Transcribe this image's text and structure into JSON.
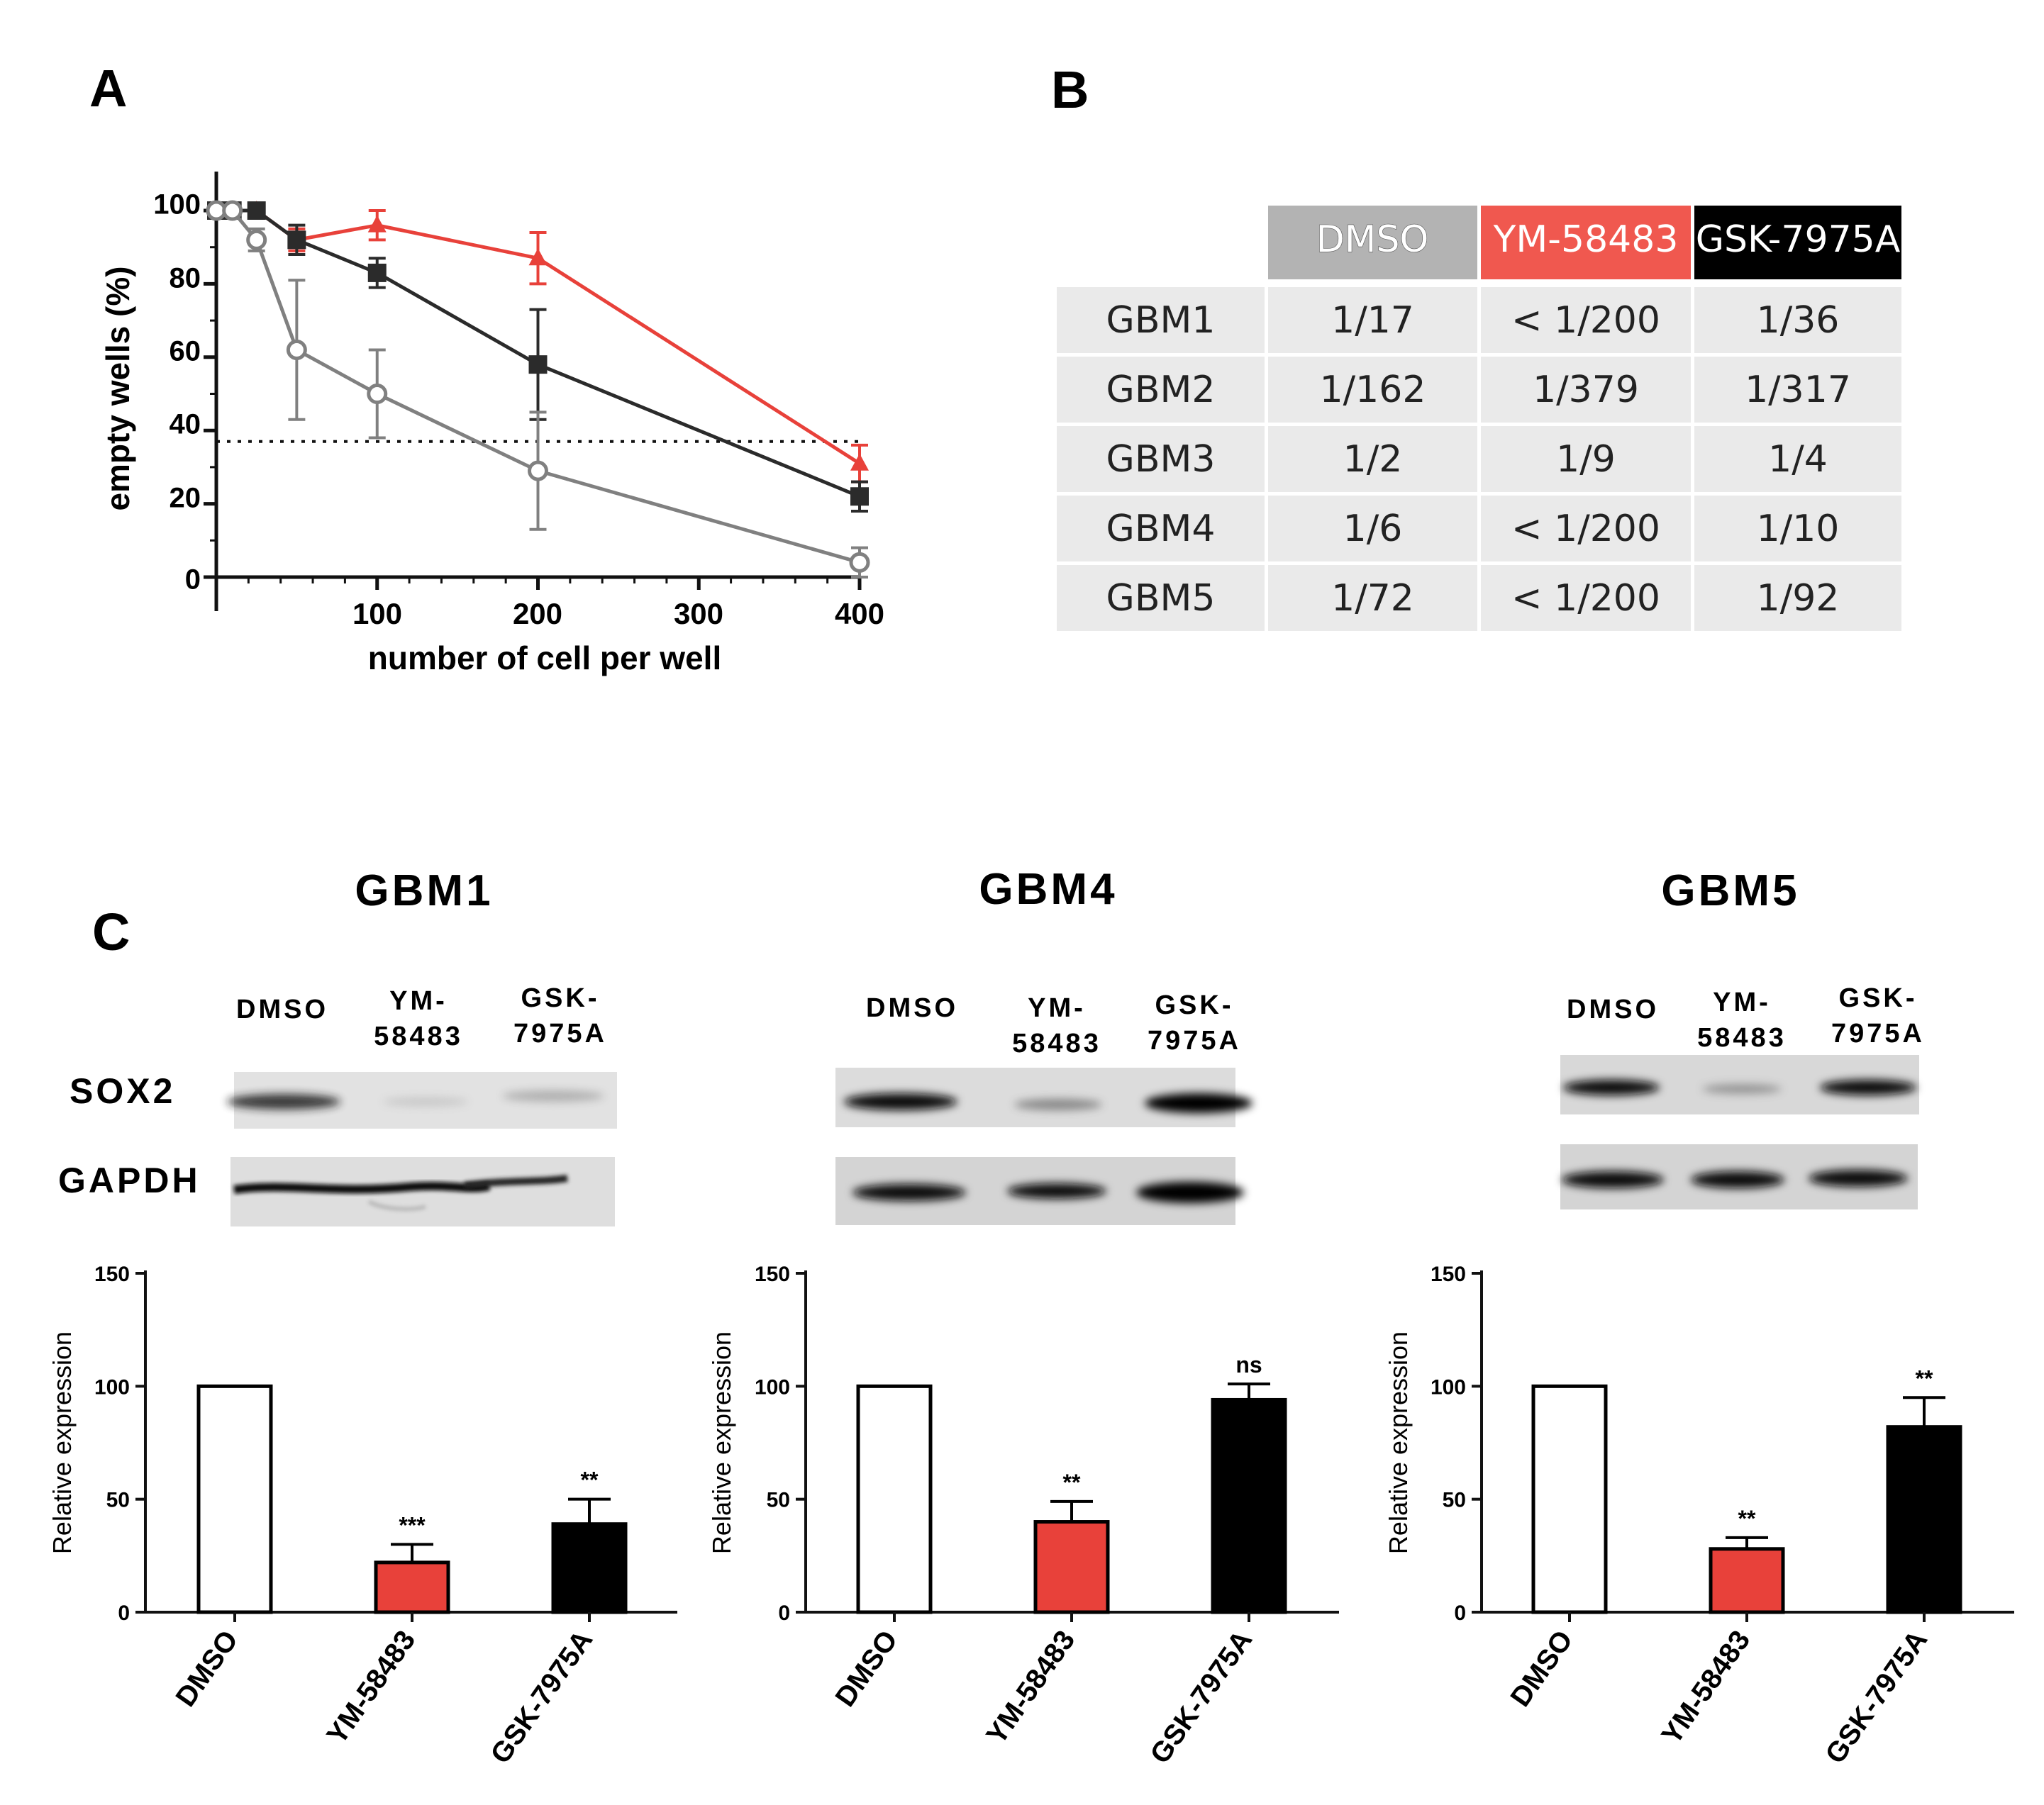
{
  "panels": {
    "a": "A",
    "b": "B",
    "c": "C"
  },
  "colors": {
    "red": "#e8413a",
    "dark": "#2b2b2b",
    "gray": "#808080",
    "table_gray": "#b3b3b3",
    "table_red": "#f0584f",
    "table_black": "#000000",
    "cell_bg": "#eaeaea"
  },
  "panel_a": {
    "xlabel": "number of cell per well",
    "ylabel": "empty wells (%)",
    "x_ticks": [
      "100",
      "200",
      "300",
      "400"
    ],
    "y_ticks": [
      "0",
      "20",
      "40",
      "60",
      "80",
      "100"
    ],
    "threshold_y": 37
  },
  "panel_b": {
    "headers": [
      "DMSO",
      "YM-58483",
      "GSK-7975A"
    ],
    "rows": [
      {
        "label": "GBM1",
        "cells": [
          "1/17",
          "< 1/200",
          "1/36"
        ]
      },
      {
        "label": "GBM2",
        "cells": [
          "1/162",
          "1/379",
          "1/317"
        ]
      },
      {
        "label": "GBM3",
        "cells": [
          "1/2",
          "1/9",
          "1/4"
        ]
      },
      {
        "label": "GBM4",
        "cells": [
          "1/6",
          "< 1/200",
          "1/10"
        ]
      },
      {
        "label": "GBM5",
        "cells": [
          "1/72",
          "< 1/200",
          "1/92"
        ]
      }
    ]
  },
  "panel_c": {
    "blot_labels": {
      "sox2": "SOX2",
      "gapdh": "GAPDH"
    },
    "lanes": [
      [
        "DMSO"
      ],
      [
        "YM-",
        "58483"
      ],
      [
        "GSK-",
        "7975A"
      ]
    ],
    "groups": [
      {
        "title": "GBM1"
      },
      {
        "title": "GBM4"
      },
      {
        "title": "GBM5"
      }
    ]
  },
  "chart_data": [
    {
      "type": "line",
      "panel": "A",
      "xlabel": "number of cell per well",
      "ylabel": "empty wells (%)",
      "xlim": [
        0,
        400
      ],
      "ylim": [
        0,
        100
      ],
      "series": [
        {
          "color": "#e8413a",
          "marker": "triangle",
          "x": [
            0,
            10,
            25,
            50,
            100,
            200,
            400
          ],
          "y": [
            100,
            100,
            100,
            92,
            96,
            87,
            31
          ],
          "err": [
            0,
            0,
            0,
            3,
            4,
            7,
            5
          ]
        },
        {
          "color": "#2b2b2b",
          "marker": "square",
          "x": [
            0,
            10,
            25,
            50,
            100,
            200,
            400
          ],
          "y": [
            100,
            100,
            100,
            92,
            83,
            58,
            22
          ],
          "err": [
            0,
            0,
            0,
            4,
            4,
            15,
            4
          ]
        },
        {
          "color": "#808080",
          "marker": "open-circle",
          "x": [
            0,
            10,
            25,
            50,
            100,
            200,
            400
          ],
          "y": [
            100,
            100,
            92,
            62,
            50,
            29,
            4
          ],
          "err": [
            0,
            0,
            3,
            19,
            12,
            16,
            4
          ]
        }
      ]
    },
    {
      "type": "bar",
      "panel": "C",
      "group": "GBM1",
      "ylabel": "Relative expression",
      "ylim": [
        0,
        150
      ],
      "y_ticks": [
        "0",
        "50",
        "100",
        "150"
      ],
      "categories": [
        "DMSO",
        "YM-58483",
        "GSK-7975A"
      ],
      "values": [
        100,
        22,
        39
      ],
      "errors": [
        0,
        8,
        11
      ],
      "significance": [
        "",
        "***",
        "**"
      ]
    },
    {
      "type": "bar",
      "panel": "C",
      "group": "GBM4",
      "ylabel": "Relative expression",
      "ylim": [
        0,
        150
      ],
      "y_ticks": [
        "0",
        "50",
        "100",
        "150"
      ],
      "categories": [
        "DMSO",
        "YM-58483",
        "GSK-7975A"
      ],
      "values": [
        100,
        40,
        94
      ],
      "errors": [
        0,
        9,
        7
      ],
      "significance": [
        "",
        "**",
        "ns"
      ]
    },
    {
      "type": "bar",
      "panel": "C",
      "group": "GBM5",
      "ylabel": "Relative expression",
      "ylim": [
        0,
        150
      ],
      "y_ticks": [
        "0",
        "50",
        "100",
        "150"
      ],
      "categories": [
        "DMSO",
        "YM-58483",
        "GSK-7975A"
      ],
      "values": [
        100,
        28,
        82
      ],
      "errors": [
        0,
        5,
        13
      ],
      "significance": [
        "",
        "**",
        "**"
      ]
    }
  ]
}
